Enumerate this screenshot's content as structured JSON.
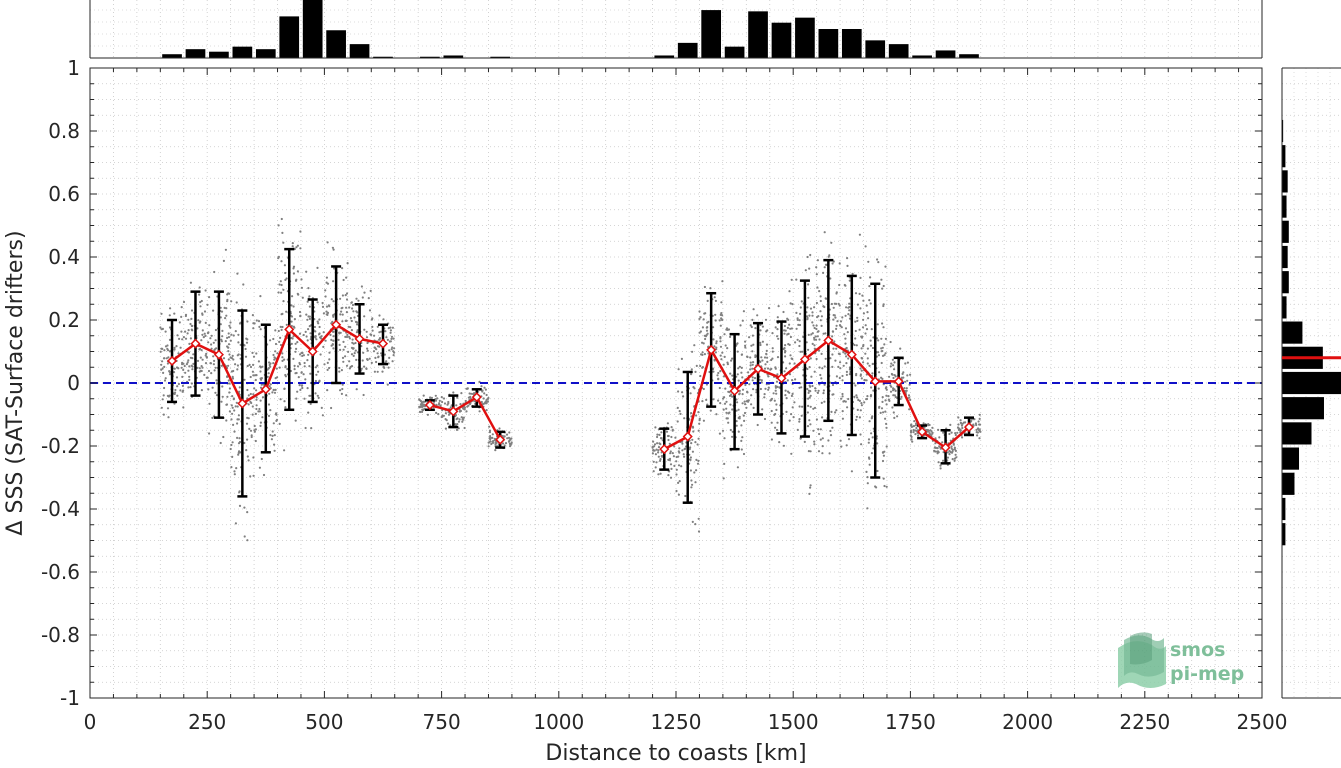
{
  "chart_data": {
    "type": "scatter",
    "xlabel": "Distance to coasts [km]",
    "ylabel": "Δ SSS (SAT-Surface drifters)",
    "xlim": [
      0,
      2500
    ],
    "ylim": [
      -1,
      1
    ],
    "x_ticks": [
      0,
      250,
      500,
      750,
      1000,
      1250,
      1500,
      1750,
      2000,
      2250,
      2500
    ],
    "x_tick_labels": [
      "0",
      "250",
      "500",
      "750",
      "1000",
      "1250",
      "1500",
      "1750",
      "2000",
      "2250",
      "2500"
    ],
    "y_ticks": [
      1,
      0.8,
      0.6,
      0.4,
      0.2,
      0,
      -0.2,
      -0.4,
      -0.6,
      -0.8,
      -1
    ],
    "y_tick_labels": [
      "1",
      "0.8",
      "0.6",
      "0.4",
      "0.2",
      "0",
      "-0.2",
      "-0.4",
      "-0.6",
      "-0.8",
      "-1"
    ],
    "grid": true,
    "reference_line": {
      "y": 0,
      "style": "dashed",
      "color": "#1010c8"
    },
    "binned_mean": {
      "color": "#e01010",
      "segments": [
        [
          {
            "x": 175,
            "y": 0.07,
            "lo": -0.06,
            "hi": 0.2
          },
          {
            "x": 225,
            "y": 0.125,
            "lo": -0.04,
            "hi": 0.29
          },
          {
            "x": 275,
            "y": 0.09,
            "lo": -0.11,
            "hi": 0.29
          },
          {
            "x": 325,
            "y": -0.065,
            "lo": -0.36,
            "hi": 0.23
          },
          {
            "x": 375,
            "y": -0.02,
            "lo": -0.22,
            "hi": 0.185
          },
          {
            "x": 425,
            "y": 0.17,
            "lo": -0.085,
            "hi": 0.425
          },
          {
            "x": 475,
            "y": 0.1,
            "lo": -0.06,
            "hi": 0.265
          },
          {
            "x": 525,
            "y": 0.185,
            "lo": 0.0,
            "hi": 0.37
          },
          {
            "x": 575,
            "y": 0.14,
            "lo": 0.03,
            "hi": 0.25
          },
          {
            "x": 625,
            "y": 0.125,
            "lo": 0.06,
            "hi": 0.185
          }
        ],
        [
          {
            "x": 725,
            "y": -0.07,
            "lo": -0.085,
            "hi": -0.055
          },
          {
            "x": 775,
            "y": -0.09,
            "lo": -0.14,
            "hi": -0.04
          },
          {
            "x": 825,
            "y": -0.045,
            "lo": -0.075,
            "hi": -0.02
          },
          {
            "x": 875,
            "y": -0.18,
            "lo": -0.205,
            "hi": -0.155
          }
        ],
        [
          {
            "x": 1225,
            "y": -0.21,
            "lo": -0.275,
            "hi": -0.145
          },
          {
            "x": 1275,
            "y": -0.17,
            "lo": -0.38,
            "hi": 0.035
          },
          {
            "x": 1325,
            "y": 0.105,
            "lo": -0.075,
            "hi": 0.285
          },
          {
            "x": 1375,
            "y": -0.025,
            "lo": -0.21,
            "hi": 0.155
          },
          {
            "x": 1425,
            "y": 0.045,
            "lo": -0.1,
            "hi": 0.19
          },
          {
            "x": 1475,
            "y": 0.015,
            "lo": -0.16,
            "hi": 0.195
          },
          {
            "x": 1525,
            "y": 0.075,
            "lo": -0.17,
            "hi": 0.325
          },
          {
            "x": 1575,
            "y": 0.135,
            "lo": -0.12,
            "hi": 0.39
          },
          {
            "x": 1625,
            "y": 0.09,
            "lo": -0.165,
            "hi": 0.34
          },
          {
            "x": 1675,
            "y": 0.005,
            "lo": -0.3,
            "hi": 0.315
          },
          {
            "x": 1725,
            "y": 0.005,
            "lo": -0.07,
            "hi": 0.08
          },
          {
            "x": 1775,
            "y": -0.155,
            "lo": -0.175,
            "hi": -0.135
          },
          {
            "x": 1825,
            "y": -0.205,
            "lo": -0.255,
            "hi": -0.15
          },
          {
            "x": 1875,
            "y": -0.14,
            "lo": -0.165,
            "hi": -0.11
          }
        ]
      ]
    },
    "scatter_clusters": [
      {
        "x": 175,
        "cy": 0.07,
        "sd": 0.14
      },
      {
        "x": 225,
        "cy": 0.12,
        "sd": 0.16
      },
      {
        "x": 275,
        "cy": 0.09,
        "sd": 0.2
      },
      {
        "x": 325,
        "cy": -0.06,
        "sd": 0.28
      },
      {
        "x": 375,
        "cy": -0.02,
        "sd": 0.2
      },
      {
        "x": 425,
        "cy": 0.17,
        "sd": 0.25
      },
      {
        "x": 475,
        "cy": 0.1,
        "sd": 0.17
      },
      {
        "x": 525,
        "cy": 0.19,
        "sd": 0.18
      },
      {
        "x": 575,
        "cy": 0.14,
        "sd": 0.11
      },
      {
        "x": 625,
        "cy": 0.12,
        "sd": 0.07
      },
      {
        "x": 725,
        "cy": -0.07,
        "sd": 0.02
      },
      {
        "x": 775,
        "cy": -0.09,
        "sd": 0.05
      },
      {
        "x": 825,
        "cy": -0.05,
        "sd": 0.03
      },
      {
        "x": 875,
        "cy": -0.18,
        "sd": 0.03
      },
      {
        "x": 1225,
        "cy": -0.21,
        "sd": 0.07
      },
      {
        "x": 1275,
        "cy": -0.17,
        "sd": 0.2
      },
      {
        "x": 1325,
        "cy": 0.1,
        "sd": 0.18
      },
      {
        "x": 1375,
        "cy": -0.02,
        "sd": 0.18
      },
      {
        "x": 1425,
        "cy": 0.05,
        "sd": 0.15
      },
      {
        "x": 1475,
        "cy": 0.02,
        "sd": 0.18
      },
      {
        "x": 1525,
        "cy": 0.08,
        "sd": 0.25
      },
      {
        "x": 1575,
        "cy": 0.13,
        "sd": 0.26
      },
      {
        "x": 1625,
        "cy": 0.09,
        "sd": 0.26
      },
      {
        "x": 1675,
        "cy": 0.0,
        "sd": 0.3
      },
      {
        "x": 1725,
        "cy": 0.0,
        "sd": 0.08
      },
      {
        "x": 1775,
        "cy": -0.15,
        "sd": 0.03
      },
      {
        "x": 1825,
        "cy": -0.2,
        "sd": 0.05
      },
      {
        "x": 1875,
        "cy": -0.14,
        "sd": 0.03
      }
    ],
    "top_histogram": {
      "bin_width": 50,
      "bins": [
        {
          "x": 175,
          "v": 3
        },
        {
          "x": 225,
          "v": 7
        },
        {
          "x": 275,
          "v": 5
        },
        {
          "x": 325,
          "v": 9
        },
        {
          "x": 375,
          "v": 7
        },
        {
          "x": 425,
          "v": 33
        },
        {
          "x": 475,
          "v": 46
        },
        {
          "x": 525,
          "v": 22
        },
        {
          "x": 575,
          "v": 11
        },
        {
          "x": 625,
          "v": 1
        },
        {
          "x": 725,
          "v": 1
        },
        {
          "x": 775,
          "v": 2
        },
        {
          "x": 875,
          "v": 1
        },
        {
          "x": 1225,
          "v": 2
        },
        {
          "x": 1275,
          "v": 12
        },
        {
          "x": 1325,
          "v": 38
        },
        {
          "x": 1375,
          "v": 9
        },
        {
          "x": 1425,
          "v": 37
        },
        {
          "x": 1475,
          "v": 28
        },
        {
          "x": 1525,
          "v": 32
        },
        {
          "x": 1575,
          "v": 23
        },
        {
          "x": 1625,
          "v": 23
        },
        {
          "x": 1675,
          "v": 14
        },
        {
          "x": 1725,
          "v": 11
        },
        {
          "x": 1775,
          "v": 2
        },
        {
          "x": 1825,
          "v": 6
        },
        {
          "x": 1875,
          "v": 3
        }
      ]
    },
    "right_histogram": {
      "bin_height": 0.08,
      "marker_y": 0.08,
      "marker_color": "#e01010",
      "bins": [
        {
          "y": 0.8,
          "v": 1
        },
        {
          "y": 0.72,
          "v": 3
        },
        {
          "y": 0.64,
          "v": 5
        },
        {
          "y": 0.56,
          "v": 4
        },
        {
          "y": 0.48,
          "v": 6
        },
        {
          "y": 0.4,
          "v": 5
        },
        {
          "y": 0.32,
          "v": 6
        },
        {
          "y": 0.24,
          "v": 4
        },
        {
          "y": 0.16,
          "v": 18
        },
        {
          "y": 0.08,
          "v": 36
        },
        {
          "y": 0.0,
          "v": 52
        },
        {
          "y": -0.08,
          "v": 37
        },
        {
          "y": -0.16,
          "v": 26
        },
        {
          "y": -0.24,
          "v": 15
        },
        {
          "y": -0.32,
          "v": 11
        },
        {
          "y": -0.4,
          "v": 3
        },
        {
          "y": -0.48,
          "v": 3
        }
      ]
    }
  },
  "logo": {
    "line1": "smos",
    "line2": "pi-mep",
    "color": "#7fbf9a"
  }
}
